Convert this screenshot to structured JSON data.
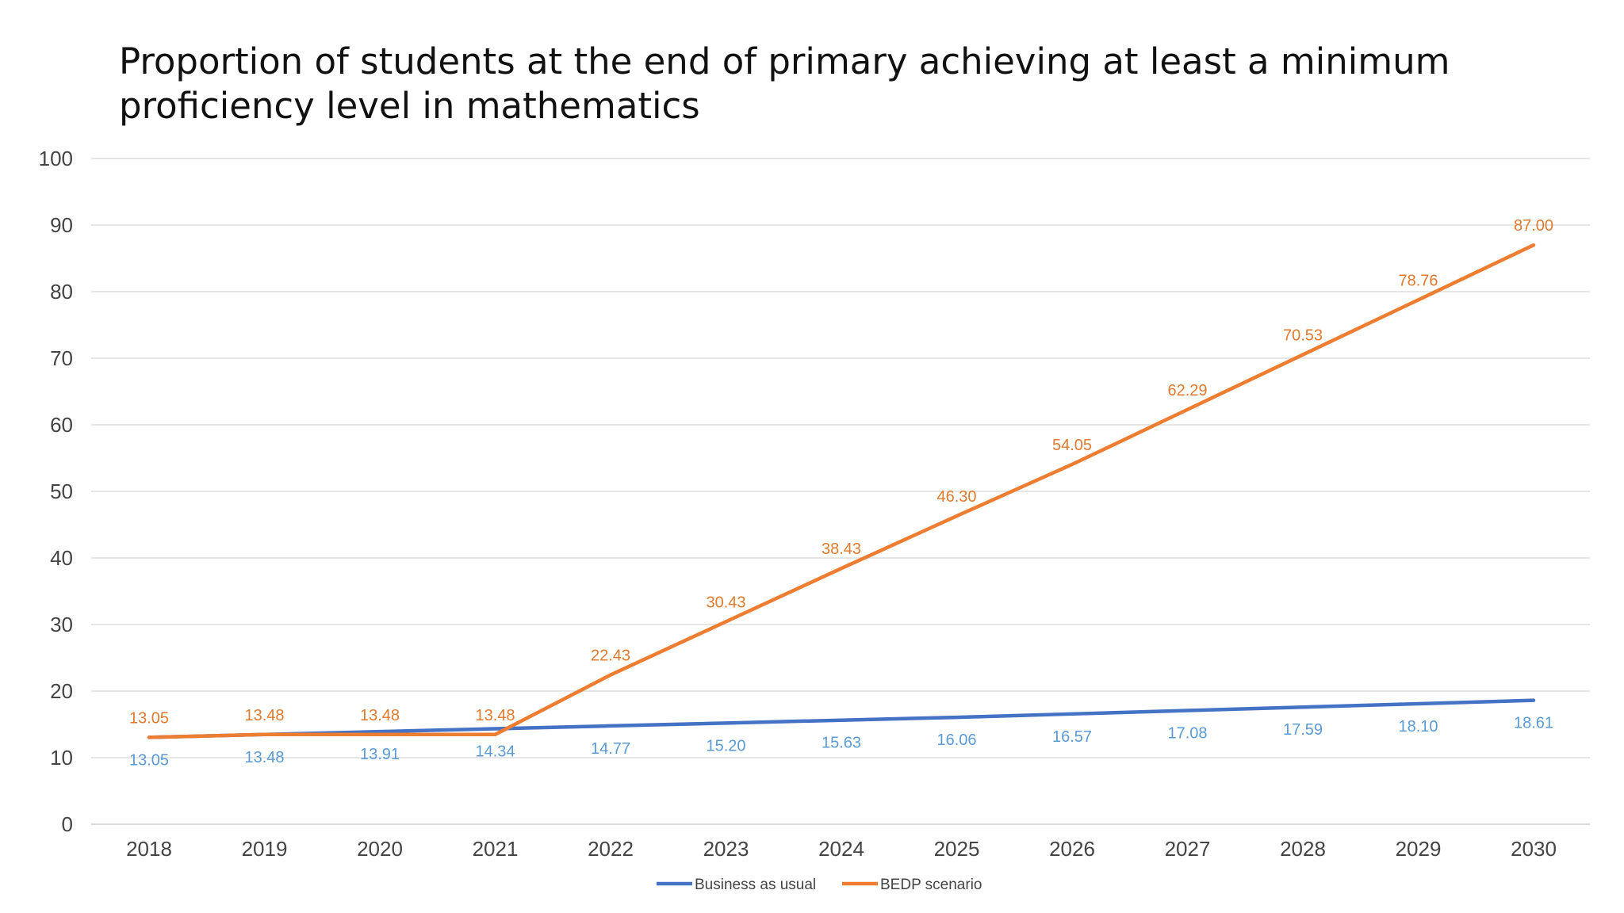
{
  "chart_data": {
    "type": "line",
    "title_line1": "Proportion of students at the end of primary achieving at least a minimum",
    "title_line2": "proficiency level in mathematics",
    "xlabel": "",
    "ylabel": "",
    "ylim": [
      0,
      100
    ],
    "yticks": [
      0,
      10,
      20,
      30,
      40,
      50,
      60,
      70,
      80,
      90,
      100
    ],
    "grid": true,
    "legend_position": "bottom-center",
    "categories": [
      "2018",
      "2019",
      "2020",
      "2021",
      "2022",
      "2023",
      "2024",
      "2025",
      "2026",
      "2027",
      "2028",
      "2029",
      "2030"
    ],
    "series": [
      {
        "name": "Business as usual",
        "color": "#4472C4",
        "label_color": "#5B9BD5",
        "values": [
          13.05,
          13.48,
          13.91,
          14.34,
          14.77,
          15.2,
          15.63,
          16.06,
          16.57,
          17.08,
          17.59,
          18.1,
          18.61
        ],
        "labels": [
          "13.05",
          "13.48",
          "13.91",
          "14.34",
          "14.77",
          "15.20",
          "15.63",
          "16.06",
          "16.57",
          "17.08",
          "17.59",
          "18.10",
          "18.61"
        ]
      },
      {
        "name": "BEDP scenario",
        "color": "#ED7D31",
        "label_color": "#E07A2E",
        "values": [
          13.05,
          13.48,
          13.48,
          13.48,
          22.43,
          30.43,
          38.43,
          46.3,
          54.05,
          62.29,
          70.53,
          78.76,
          87.0
        ],
        "labels": [
          "13.05",
          "13.48",
          "13.48",
          "13.48",
          "22.43",
          "30.43",
          "38.43",
          "46.30",
          "54.05",
          "62.29",
          "70.53",
          "78.76",
          "87.00"
        ]
      }
    ]
  }
}
